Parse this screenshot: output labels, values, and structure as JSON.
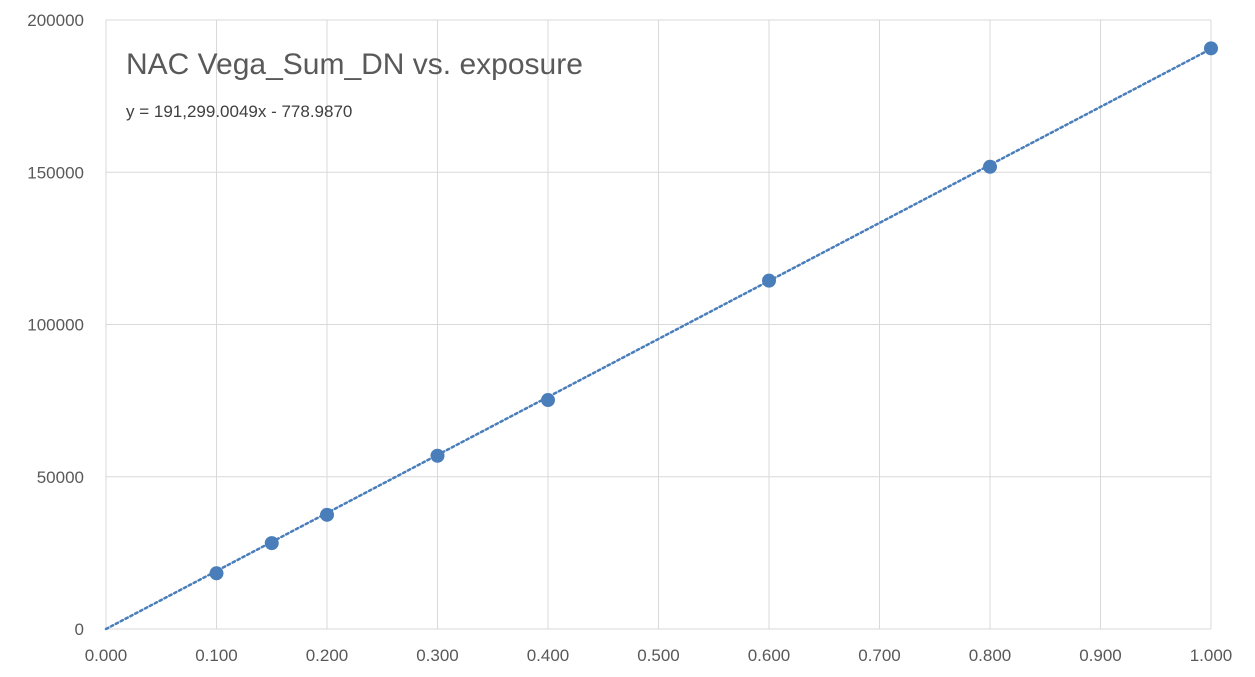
{
  "chart_data": {
    "type": "scatter",
    "title": "NAC Vega_Sum_DN vs. exposure",
    "xlabel": "",
    "ylabel": "",
    "xlim": [
      0.0,
      1.0
    ],
    "ylim": [
      0,
      200000
    ],
    "x_ticks": [
      "0.000",
      "0.100",
      "0.200",
      "0.300",
      "0.400",
      "0.500",
      "0.600",
      "0.700",
      "0.800",
      "0.900",
      "1.000"
    ],
    "y_ticks": [
      "0",
      "50000",
      "100000",
      "150000",
      "200000"
    ],
    "grid": true,
    "legend": "none",
    "series": [
      {
        "x": [
          0.1,
          0.15,
          0.2,
          0.3,
          0.4,
          0.6,
          0.8,
          1.0
        ],
        "y": [
          18300,
          28200,
          37500,
          56900,
          75200,
          114400,
          151800,
          190700
        ],
        "color": "#4a7ebb"
      }
    ],
    "trendline": {
      "type": "linear",
      "slope": 191299.0049,
      "intercept": -778.987,
      "style": "dotted",
      "color": "#4a7ebb",
      "equation_label": "y = 191,299.0049x - 778.9870"
    },
    "colors": {
      "gridline": "#d9d9d9",
      "axis_text": "#595959",
      "marker": "#4a7ebb"
    }
  }
}
